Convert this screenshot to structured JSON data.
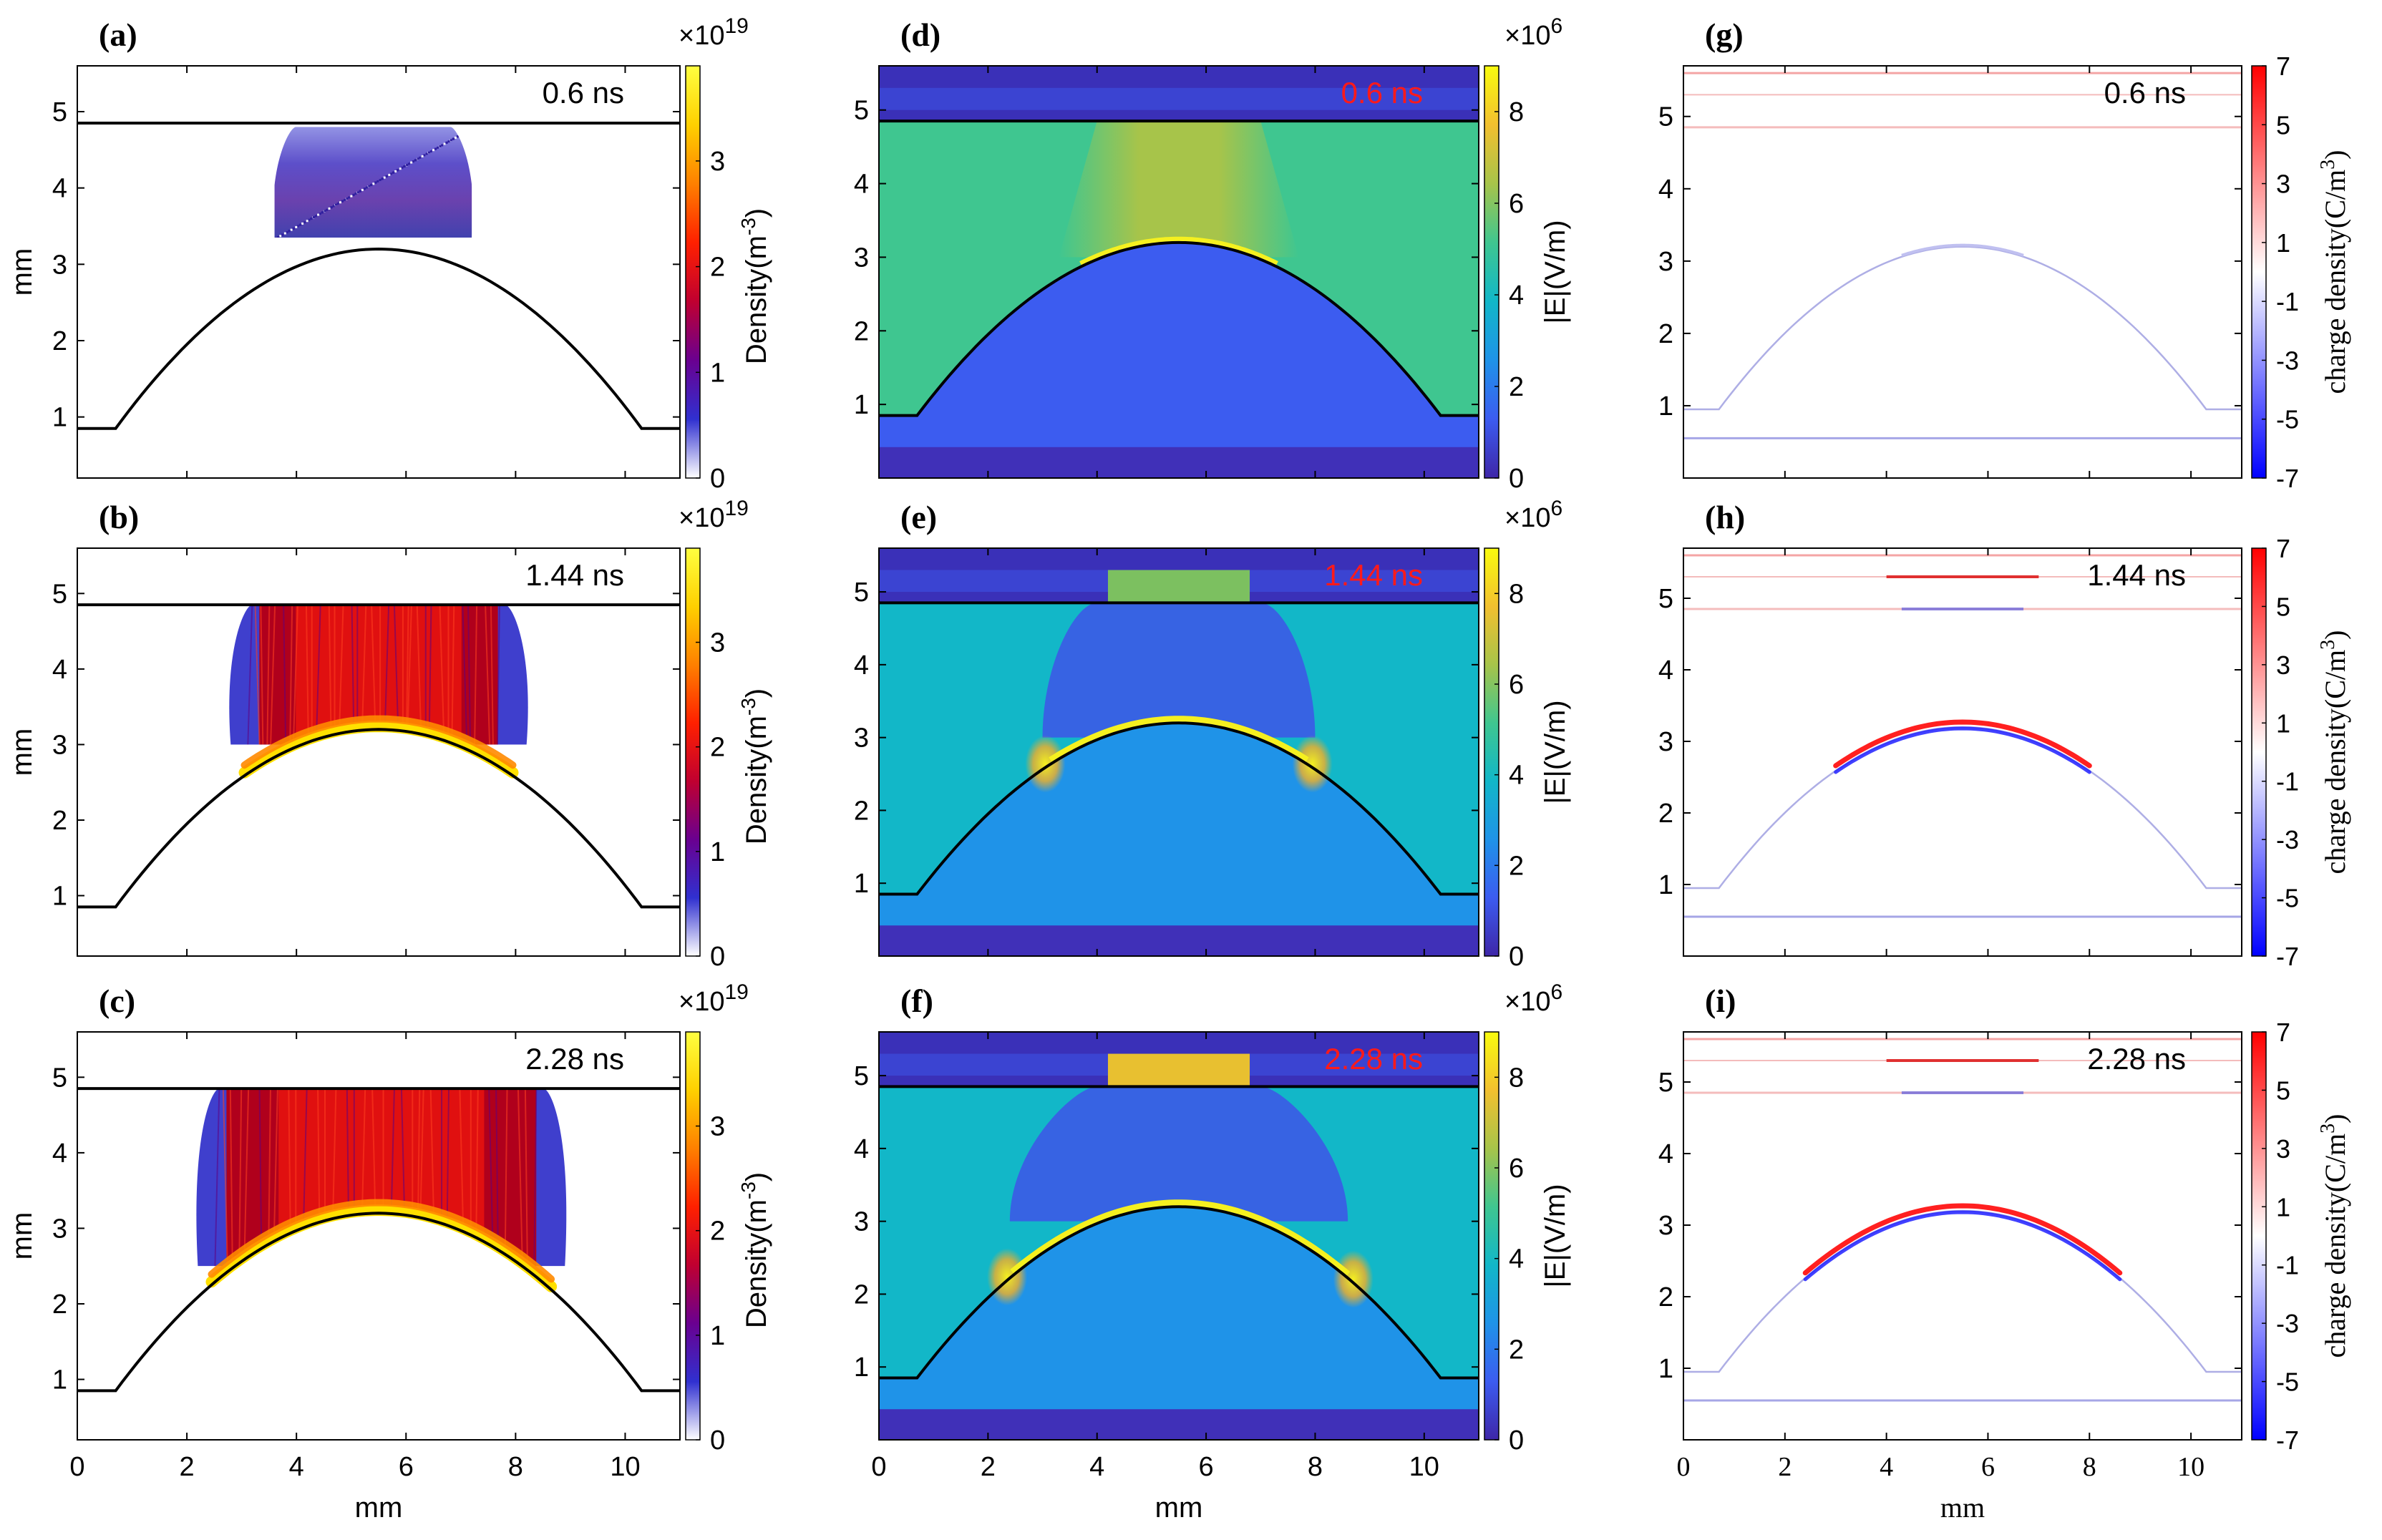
{
  "figure": {
    "description_free": true,
    "common_x_label": "mm",
    "common_y_label": "mm"
  },
  "columns": {
    "density": {
      "cbar_label": "Density(m",
      "cbar_label_sup": "-3",
      "cbar_label_end": ")",
      "cbar_exponent": "×10",
      "cbar_exponent_sup": "19",
      "cbar_ticks": [
        "0",
        "1",
        "2",
        "3"
      ],
      "colormap": [
        "#ffffff",
        "#3030d0",
        "#6a0090",
        "#c00030",
        "#ff2000",
        "#ff8000",
        "#ffd000",
        "#ffff40"
      ]
    },
    "efield": {
      "cbar_label": "|E|(V/m)",
      "cbar_exponent": "×10",
      "cbar_exponent_sup": "6",
      "cbar_ticks": [
        "0",
        "2",
        "4",
        "6",
        "8"
      ],
      "colormap": [
        "#3e26a8",
        "#3c5cf0",
        "#1f93e8",
        "#12b7c8",
        "#3fc690",
        "#a7c44a",
        "#f2c02f",
        "#f9fb0e"
      ]
    },
    "charge": {
      "cbar_label": "charge density(C/m",
      "cbar_label_sup": "3",
      "cbar_label_end": ")",
      "cbar_ticks": [
        "-7",
        "-5",
        "-3",
        "-1",
        "1",
        "3",
        "5",
        "7"
      ],
      "colormap": [
        "#0000ff",
        "#8080ff",
        "#ffffff",
        "#ff8080",
        "#ff0000"
      ]
    }
  },
  "chart_data": [
    {
      "panel": "(a)",
      "type": "heatmap",
      "quantity": "electron density",
      "time": "0.6 ns",
      "xlabel": "",
      "ylabel": "mm",
      "xlim": [
        0,
        11
      ],
      "ylim": [
        0.2,
        5.6
      ],
      "xticks": [
        "0",
        "2",
        "4",
        "6",
        "8",
        "10"
      ],
      "yticks": [
        "1",
        "2",
        "3",
        "4",
        "5"
      ],
      "zlim": [
        0,
        3.9e+19
      ],
      "electrode_plane_y": 4.85,
      "dielectric_dome": {
        "apex_x": 5.5,
        "apex_y": 3.2,
        "base_y": 0.85,
        "foot_left_x": 0.7,
        "foot_right_x": 10.3
      },
      "plasma_region": {
        "x": [
          3.6,
          7.2
        ],
        "y": [
          3.35,
          4.8
        ],
        "peak": 0.5
      }
    },
    {
      "panel": "(b)",
      "type": "heatmap",
      "quantity": "electron density",
      "time": "1.44 ns",
      "xlabel": "",
      "ylabel": "mm",
      "xlim": [
        0,
        11
      ],
      "ylim": [
        0.2,
        5.6
      ],
      "xticks": [
        "0",
        "2",
        "4",
        "6",
        "8",
        "10"
      ],
      "yticks": [
        "1",
        "2",
        "3",
        "4",
        "5"
      ],
      "zlim": [
        0,
        3.9e+19
      ],
      "electrode_plane_y": 4.85,
      "dielectric_dome": {
        "apex_x": 5.5,
        "apex_y": 3.2,
        "base_y": 0.85,
        "foot_left_x": 0.7,
        "foot_right_x": 10.3
      },
      "plasma_region": {
        "x": [
          2.8,
          8.2
        ],
        "y": [
          3.0,
          4.85
        ],
        "peak": 3.9
      }
    },
    {
      "panel": "(c)",
      "type": "heatmap",
      "quantity": "electron density",
      "time": "2.28 ns",
      "xlabel": "mm",
      "ylabel": "mm",
      "xlim": [
        0,
        11
      ],
      "ylim": [
        0.2,
        5.6
      ],
      "xticks": [
        "0",
        "2",
        "4",
        "6",
        "8",
        "10"
      ],
      "yticks": [
        "1",
        "2",
        "3",
        "4",
        "5"
      ],
      "zlim": [
        0,
        3.9e+19
      ],
      "electrode_plane_y": 4.85,
      "dielectric_dome": {
        "apex_x": 5.5,
        "apex_y": 3.2,
        "base_y": 0.85,
        "foot_left_x": 0.7,
        "foot_right_x": 10.3
      },
      "plasma_region": {
        "x": [
          2.2,
          8.9
        ],
        "y": [
          2.5,
          4.85
        ],
        "peak": 3.9
      }
    },
    {
      "panel": "(d)",
      "type": "heatmap",
      "quantity": "electric field magnitude",
      "time": "0.6 ns",
      "xlabel": "",
      "ylabel": "",
      "xlim": [
        0,
        11
      ],
      "ylim": [
        0,
        5.6
      ],
      "xticks": [
        "0",
        "2",
        "4",
        "6",
        "8",
        "10"
      ],
      "yticks": [
        "1",
        "2",
        "3",
        "4",
        "5"
      ],
      "zlim": [
        0,
        9000000.0
      ],
      "electrode_plane_y": 4.85,
      "dielectric_dome": {
        "apex_x": 5.5,
        "apex_y": 3.2,
        "base_y": 0.85,
        "foot_left_x": 0.7,
        "foot_right_x": 10.3
      },
      "field_levels_1e6": {
        "top_layer": 0.5,
        "gap_background": 4.5,
        "column_above_apex": 7.0,
        "inside_dome": 1.8,
        "bottom_layer": 0.5
      }
    },
    {
      "panel": "(e)",
      "type": "heatmap",
      "quantity": "electric field magnitude",
      "time": "1.44 ns",
      "xlabel": "",
      "ylabel": "",
      "xlim": [
        0,
        11
      ],
      "ylim": [
        0,
        5.6
      ],
      "xticks": [
        "0",
        "2",
        "4",
        "6",
        "8",
        "10"
      ],
      "yticks": [
        "1",
        "2",
        "3",
        "4",
        "5"
      ],
      "zlim": [
        0,
        9000000.0
      ],
      "electrode_plane_y": 4.85,
      "dielectric_dome": {
        "apex_x": 5.5,
        "apex_y": 3.2,
        "base_y": 0.85,
        "foot_left_x": 0.7,
        "foot_right_x": 10.3
      },
      "field_levels_1e6": {
        "top_layer": 0.5,
        "gap_background": 4.0,
        "plasma_column": 2.0,
        "streamer_head": 7.5,
        "inside_dome": 3.0,
        "bottom_layer": 0.5
      }
    },
    {
      "panel": "(f)",
      "type": "heatmap",
      "quantity": "electric field magnitude",
      "time": "2.28 ns",
      "xlabel": "mm",
      "ylabel": "",
      "xlim": [
        0,
        11
      ],
      "ylim": [
        0,
        5.6
      ],
      "xticks": [
        "0",
        "2",
        "4",
        "6",
        "8",
        "10"
      ],
      "yticks": [
        "1",
        "2",
        "3",
        "4",
        "5"
      ],
      "zlim": [
        0,
        9000000.0
      ],
      "electrode_plane_y": 4.85,
      "dielectric_dome": {
        "apex_x": 5.5,
        "apex_y": 3.2,
        "base_y": 0.85,
        "foot_left_x": 0.7,
        "foot_right_x": 10.3
      },
      "field_levels_1e6": {
        "top_layer": 0.5,
        "gap_background": 4.0,
        "plasma_column": 1.8,
        "streamer_head": 7.5,
        "inside_dome": 3.0,
        "bottom_layer": 0.5
      }
    },
    {
      "panel": "(g)",
      "type": "heatmap",
      "quantity": "charge density",
      "time": "0.6 ns",
      "xlabel": "",
      "ylabel": "",
      "xlim": [
        0,
        11
      ],
      "ylim": [
        0,
        5.7
      ],
      "xticks": [
        "0",
        "2",
        "4",
        "6",
        "8",
        "10"
      ],
      "yticks": [
        "1",
        "2",
        "3",
        "4",
        "5"
      ],
      "zlim": [
        -7,
        7
      ],
      "electrode_plane_y": 4.85,
      "dielectric_dome": {
        "apex_x": 5.5,
        "apex_y": 3.2,
        "base_y": 0.95,
        "foot_left_x": 0.7,
        "foot_right_x": 10.3
      },
      "surface_charge": "faint"
    },
    {
      "panel": "(h)",
      "type": "heatmap",
      "quantity": "charge density",
      "time": "1.44 ns",
      "xlabel": "",
      "ylabel": "",
      "xlim": [
        0,
        11
      ],
      "ylim": [
        0,
        5.7
      ],
      "xticks": [
        "0",
        "2",
        "4",
        "6",
        "8",
        "10"
      ],
      "yticks": [
        "1",
        "2",
        "3",
        "4",
        "5"
      ],
      "zlim": [
        -7,
        7
      ],
      "electrode_plane_y": 4.85,
      "dielectric_dome": {
        "apex_x": 5.5,
        "apex_y": 3.2,
        "base_y": 0.95,
        "foot_left_x": 0.7,
        "foot_right_x": 10.3
      },
      "surface_charge": "positive layer above negative layer near apex",
      "charge_arc_x": [
        3.0,
        8.0
      ]
    },
    {
      "panel": "(i)",
      "type": "heatmap",
      "quantity": "charge density",
      "time": "2.28 ns",
      "xlabel": "mm",
      "ylabel": "",
      "xlim": [
        0,
        11
      ],
      "ylim": [
        0,
        5.7
      ],
      "xticks": [
        "0",
        "2",
        "4",
        "6",
        "8",
        "10"
      ],
      "yticks": [
        "1",
        "2",
        "3",
        "4",
        "5"
      ],
      "zlim": [
        -7,
        7
      ],
      "electrode_plane_y": 4.85,
      "dielectric_dome": {
        "apex_x": 5.5,
        "apex_y": 3.2,
        "base_y": 0.95,
        "foot_left_x": 0.7,
        "foot_right_x": 10.3
      },
      "surface_charge": "positive layer above negative layer",
      "charge_arc_x": [
        2.4,
        8.6
      ]
    }
  ]
}
